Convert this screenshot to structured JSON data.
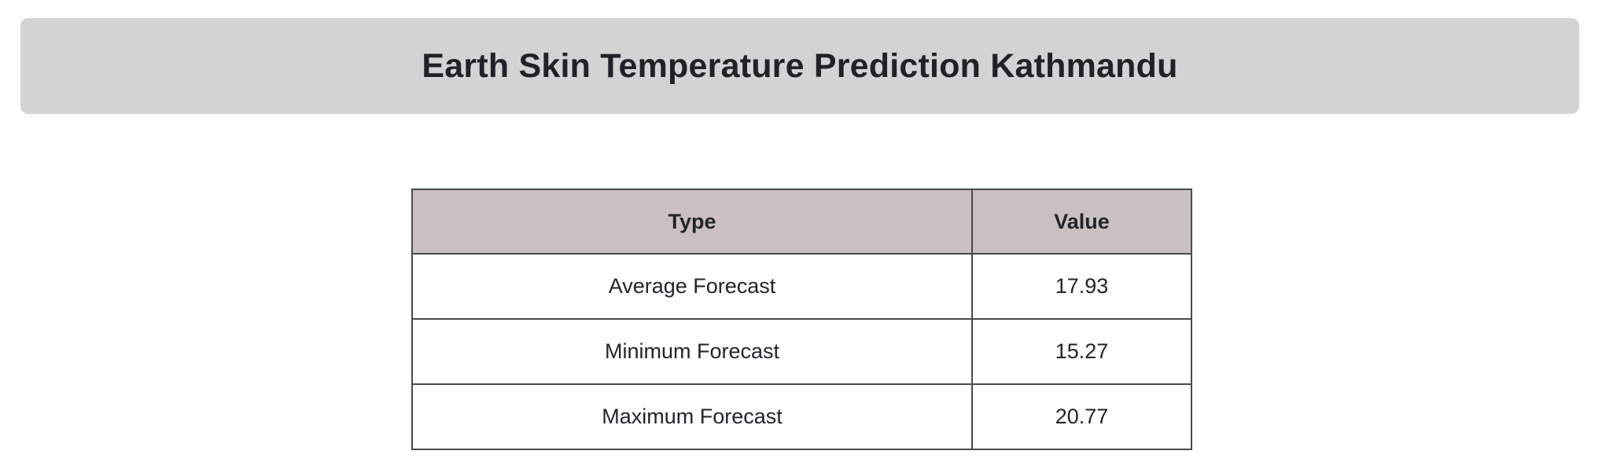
{
  "header": {
    "title": "Earth Skin Temperature Prediction Kathmandu"
  },
  "table": {
    "columns": [
      "Type",
      "Value"
    ],
    "rows": [
      {
        "type": "Average Forecast",
        "value": "17.93"
      },
      {
        "type": "Minimum Forecast",
        "value": "15.27"
      },
      {
        "type": "Maximum Forecast",
        "value": "20.77"
      }
    ]
  },
  "colors": {
    "title_banner_bg": "#d3d3d3",
    "table_header_bg": "#cbc0c1",
    "table_border": "#4a4a4a",
    "text": "#212529",
    "page_bg": "#ffffff"
  }
}
